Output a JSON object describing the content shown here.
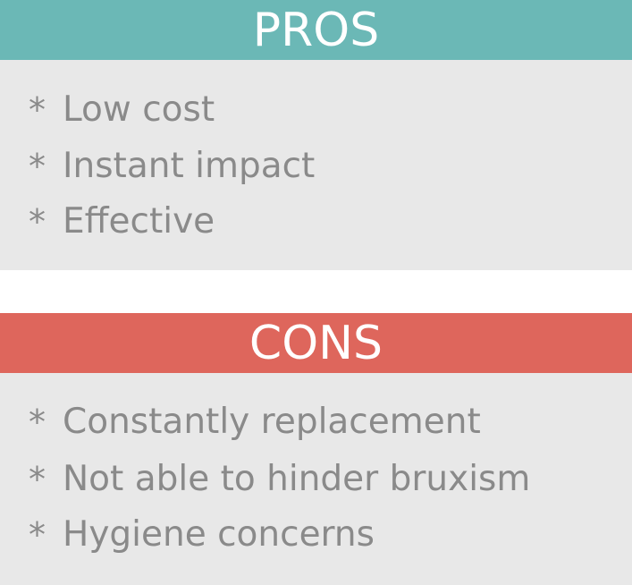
{
  "pros": {
    "title": "PROS",
    "items": [
      {
        "bullet": "*",
        "text": "Low cost"
      },
      {
        "bullet": "*",
        "text": "Instant impact"
      },
      {
        "bullet": "*",
        "text": "Effective"
      }
    ]
  },
  "cons": {
    "title": "CONS",
    "items": [
      {
        "bullet": "*",
        "text": "Constantly replacement"
      },
      {
        "bullet": "*",
        "text": "Not able to hinder bruxism"
      },
      {
        "bullet": "*",
        "text": "Hygiene concerns"
      }
    ]
  },
  "colors": {
    "pros_header": "#6bb8b6",
    "cons_header": "#de665c",
    "body_bg": "#e8e8e8",
    "text": "#8a8a8a",
    "header_text": "#ffffff"
  }
}
